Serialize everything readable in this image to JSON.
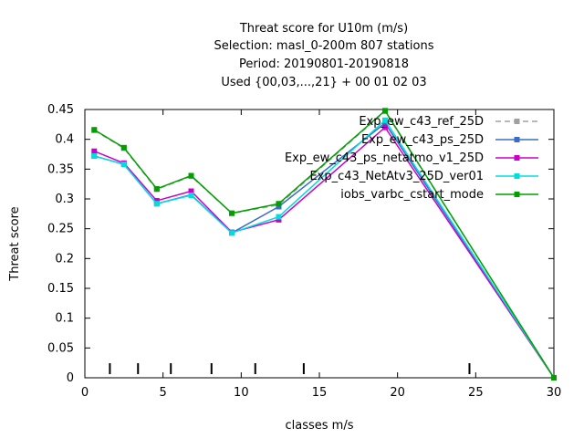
{
  "chart_data": {
    "type": "line",
    "title_lines": [
      "Threat score  for U10m (m/s)",
      "Selection: masl_0-200m    807 stations",
      "Period: 20190801-20190818",
      "Used {00,03,...,21} + 00 01 02 03"
    ],
    "xlabel": "classes m/s",
    "ylabel": "Threat score",
    "xlim": [
      0,
      30
    ],
    "ylim": [
      0,
      0.45
    ],
    "x_ticks": [
      "0",
      "5",
      "10",
      "15",
      "20",
      "25",
      "30"
    ],
    "y_ticks": [
      "0",
      "0.05",
      "0.1",
      "0.15",
      "0.2",
      "0.25",
      "0.3",
      "0.35",
      "0.4",
      "0.45"
    ],
    "grid": false,
    "legend_position": "top-right",
    "class_markers_x": [
      1.6,
      3.4,
      5.5,
      8.1,
      10.9,
      14.0,
      24.6
    ],
    "series": [
      {
        "name": "Exp_ew_c43_ref_25D",
        "color": "#a0a0a0",
        "dash": true,
        "x": [
          0.6,
          2.5,
          4.6,
          6.8,
          9.4,
          12.4,
          19.2,
          30
        ],
        "y": [
          0.415,
          0.385,
          0.316,
          0.338,
          0.276,
          0.29,
          0.447,
          0.0
        ]
      },
      {
        "name": "Exp_ew_c43_ps_25D",
        "color": "#3a6cc8",
        "dash": false,
        "x": [
          0.6,
          2.5,
          4.6,
          6.8,
          9.4,
          12.4,
          19.2,
          30
        ],
        "y": [
          0.372,
          0.358,
          0.292,
          0.307,
          0.243,
          0.287,
          0.427,
          0.0
        ]
      },
      {
        "name": "Exp_ew_c43_ps_netatmo_v1_25D",
        "color": "#cc00cc",
        "dash": false,
        "x": [
          0.6,
          2.5,
          4.6,
          6.8,
          9.4,
          12.4,
          19.2,
          30
        ],
        "y": [
          0.38,
          0.36,
          0.297,
          0.313,
          0.244,
          0.265,
          0.42,
          0.0
        ]
      },
      {
        "name": "Exp_c43_NetAtv3_25D_ver01",
        "color": "#00dddd",
        "dash": false,
        "x": [
          0.6,
          2.5,
          4.6,
          6.8,
          9.4,
          12.4,
          19.2,
          30
        ],
        "y": [
          0.372,
          0.358,
          0.292,
          0.306,
          0.243,
          0.27,
          0.432,
          0.0
        ]
      },
      {
        "name": "iobs_varbc_cstart_mode",
        "color": "#00a000",
        "dash": false,
        "x": [
          0.6,
          2.5,
          4.6,
          6.8,
          9.4,
          12.4,
          19.2,
          30
        ],
        "y": [
          0.416,
          0.386,
          0.317,
          0.339,
          0.276,
          0.292,
          0.448,
          0.0
        ]
      }
    ]
  }
}
